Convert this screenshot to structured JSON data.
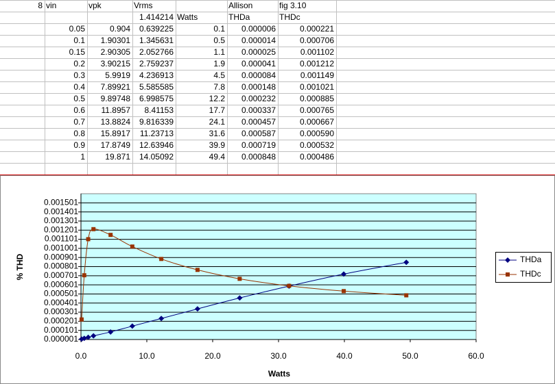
{
  "table": {
    "rows": [
      [
        "8",
        "vin",
        "vpk",
        "Vrms",
        null,
        "Allison",
        "fig 3.10"
      ],
      [
        null,
        null,
        null,
        "1.414214",
        "Watts",
        "THDa",
        "THDc"
      ],
      [
        null,
        "0.05",
        "0.904",
        "0.639225",
        "0.1",
        "0.000006",
        "0.000221"
      ],
      [
        null,
        "0.1",
        "1.90301",
        "1.345631",
        "0.5",
        "0.000014",
        "0.000706"
      ],
      [
        null,
        "0.15",
        "2.90305",
        "2.052766",
        "1.1",
        "0.000025",
        "0.001102"
      ],
      [
        null,
        "0.2",
        "3.90215",
        "2.759237",
        "1.9",
        "0.000041",
        "0.001212"
      ],
      [
        null,
        "0.3",
        "5.9919",
        "4.236913",
        "4.5",
        "0.000084",
        "0.001149"
      ],
      [
        null,
        "0.4",
        "7.89921",
        "5.585585",
        "7.8",
        "0.000148",
        "0.001021"
      ],
      [
        null,
        "0.5",
        "9.89748",
        "6.998575",
        "12.2",
        "0.000232",
        "0.000885"
      ],
      [
        null,
        "0.6",
        "11.8957",
        "8.41153",
        "17.7",
        "0.000337",
        "0.000765"
      ],
      [
        null,
        "0.7",
        "13.8824",
        "9.816339",
        "24.1",
        "0.000457",
        "0.000667"
      ],
      [
        null,
        "0.8",
        "15.8917",
        "11.23713",
        "31.6",
        "0.000587",
        "0.000590"
      ],
      [
        null,
        "0.9",
        "17.8749",
        "12.63946",
        "39.9",
        "0.000719",
        "0.000532"
      ],
      [
        null,
        "1",
        "19.871",
        "14.05092",
        "49.4",
        "0.000848",
        "0.000486"
      ]
    ]
  },
  "chart_data": {
    "type": "line",
    "x_label": "Watts",
    "y_label": "% THD",
    "x": [
      0.1,
      0.5,
      1.1,
      1.9,
      4.5,
      7.8,
      12.2,
      17.7,
      24.1,
      31.6,
      39.9,
      49.4
    ],
    "series": [
      {
        "name": "THDa",
        "color": "#000080",
        "marker": "diamond",
        "values": [
          6e-06,
          1.4e-05,
          2.5e-05,
          4.1e-05,
          8.4e-05,
          0.000148,
          0.000232,
          0.000337,
          0.000457,
          0.000587,
          0.000719,
          0.000848
        ]
      },
      {
        "name": "THDc",
        "color": "#993300",
        "marker": "square",
        "values": [
          0.000221,
          0.000706,
          0.001102,
          0.001212,
          0.001149,
          0.001021,
          0.000885,
          0.000765,
          0.000667,
          0.00059,
          0.000532,
          0.000486
        ]
      }
    ],
    "xlim": [
      0,
      60
    ],
    "xticks": [
      {
        "value": 0,
        "label": "0.0"
      },
      {
        "value": 10,
        "label": "10.0"
      },
      {
        "value": 20,
        "label": "20.0"
      },
      {
        "value": 30,
        "label": "30.0"
      },
      {
        "value": 40,
        "label": "40.0"
      },
      {
        "value": 50,
        "label": "50.0"
      },
      {
        "value": 60,
        "label": "60.0"
      }
    ],
    "ylim": [
      1e-06,
      0.001601
    ],
    "yticks": [
      1e-06,
      0.000101,
      0.000201,
      0.000301,
      0.000401,
      0.000501,
      0.000601,
      0.000701,
      0.000801,
      0.000901,
      0.001001,
      0.001101,
      0.001201,
      0.001301,
      0.001401,
      0.001501
    ],
    "grid": true,
    "smooth": true,
    "plot_color": "#ccffff",
    "legend": "right"
  }
}
